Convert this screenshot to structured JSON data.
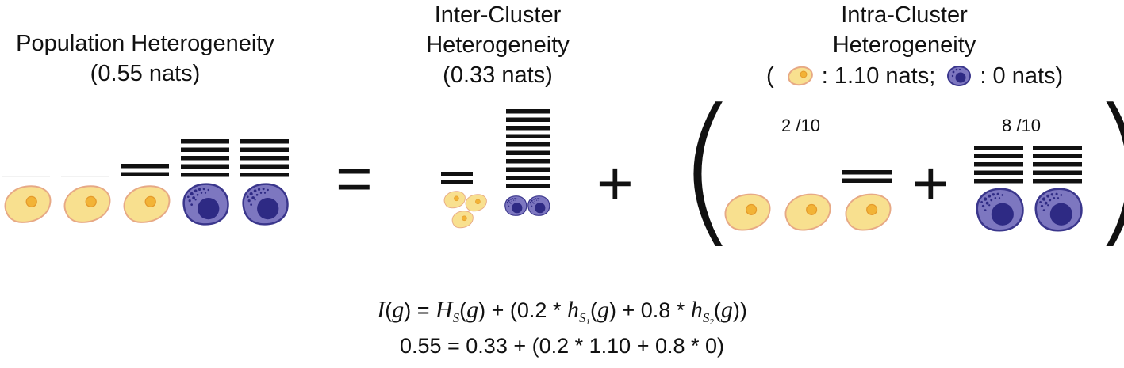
{
  "headings": {
    "population": {
      "line1": "Population Heterogeneity",
      "line2": "(0.55 nats)"
    },
    "inter": {
      "line1": "Inter-Cluster",
      "line2": "Heterogeneity",
      "line3": "(0.33 nats)"
    },
    "intra": {
      "line1": "Intra-Cluster",
      "line2": "Heterogeneity",
      "legend_open": "(",
      "legend_yellow": ": 1.10 nats;",
      "legend_blue": ": 0 nats)"
    }
  },
  "fractions": {
    "yellow": "2 /10",
    "blue": "8 /10"
  },
  "operators": {
    "equals": "=",
    "plus_inter": "+",
    "plus_intra": "+",
    "paren_open": "(",
    "paren_close": ")"
  },
  "equation": {
    "I": "I",
    "g": "g",
    "eq": "=",
    "H": "H",
    "S": "S",
    "plus1": "+ (0.2 *",
    "h": "h",
    "S1": "1",
    "plus2": "+ 0.8 *",
    "S2": "2",
    "close": ")",
    "numeric": "0.55 = 0.33 + (0.2 * 1.10 + 0.8 * 0)"
  },
  "colors": {
    "yellow_fill": "#f8e08f",
    "yellow_stroke": "#e7a985",
    "yellow_nucleus": "#f2b336",
    "blue_fill": "#7d77c0",
    "blue_stroke": "#3a368c",
    "blue_nucleus": "#2e2a84",
    "bar": "#111111"
  },
  "bar_counts": {
    "population": [
      0,
      0,
      2,
      5,
      5
    ],
    "inter": [
      2,
      10
    ],
    "intra_yellow": [
      0,
      0,
      2
    ],
    "intra_blue": [
      5,
      5
    ]
  }
}
